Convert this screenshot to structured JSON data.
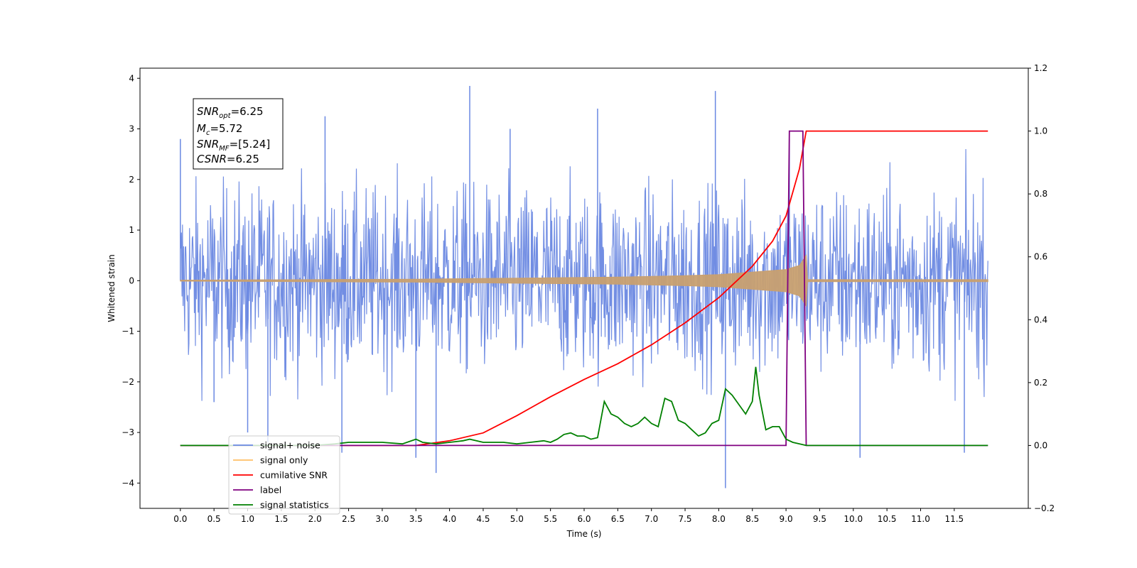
{
  "chart_data": {
    "type": "line",
    "title": "",
    "xlabel": "Time (s)",
    "ylabel_left": "Whitened strain",
    "ylabel_right": "",
    "xlim": [
      -0.6,
      12.6
    ],
    "ylim_left": [
      -4.5,
      4.2
    ],
    "ylim_right": [
      -0.2,
      1.2
    ],
    "x_ticks": [
      "0.0",
      "0.5",
      "1.0",
      "1.5",
      "2.0",
      "2.5",
      "3.0",
      "3.5",
      "4.0",
      "4.5",
      "5.0",
      "5.5",
      "6.0",
      "6.5",
      "7.0",
      "7.5",
      "8.0",
      "8.5",
      "9.0",
      "9.5",
      "10.0",
      "10.5",
      "11.0",
      "11.5"
    ],
    "y_ticks_left": [
      "4",
      "3",
      "2",
      "1",
      "0",
      "−1",
      "−2",
      "−3",
      "−4"
    ],
    "y_ticks_right": [
      "1.2",
      "1.0",
      "0.8",
      "0.6",
      "0.4",
      "0.2",
      "0.0",
      "−0.2"
    ],
    "grid": false,
    "legend_position": "bottom-left",
    "annotation": {
      "lines": [
        {
          "main": "SNR",
          "sub": "opt",
          "rest": "=6.25"
        },
        {
          "main": "M",
          "sub": "c",
          "rest": "=5.72"
        },
        {
          "main": "SNR",
          "sub": "MF",
          "rest": "=[5.24]"
        },
        {
          "main": "CSNR",
          "sub": "",
          "rest": "=6.25"
        }
      ]
    },
    "legend": [
      {
        "label": "signal+ noise",
        "color": "#6a88e2"
      },
      {
        "label": "signal only",
        "color": "#ffbf66"
      },
      {
        "label": "cumilative SNR",
        "color": "#ff0000"
      },
      {
        "label": "label",
        "color": "#800080"
      },
      {
        "label": "signal statistics",
        "color": "#008000"
      }
    ],
    "series": [
      {
        "name": "signal+ noise",
        "axis": "left",
        "color": "#6a88e2",
        "description_range": [
          0.0,
          12.0
        ],
        "typical_amplitude": 1.8,
        "peaks": [
          [
            0.0,
            2.8
          ],
          [
            0.5,
            -2.4
          ],
          [
            1.0,
            -3.0
          ],
          [
            1.3,
            -3.2
          ],
          [
            2.15,
            3.25
          ],
          [
            2.4,
            -3.4
          ],
          [
            3.5,
            -3.5
          ],
          [
            3.8,
            -3.8
          ],
          [
            4.3,
            3.85
          ],
          [
            4.9,
            3.0
          ],
          [
            6.2,
            3.4
          ],
          [
            7.95,
            3.75
          ],
          [
            8.1,
            -4.1
          ],
          [
            9.05,
            2.8
          ],
          [
            10.1,
            -3.5
          ],
          [
            11.65,
            -3.4
          ]
        ]
      },
      {
        "name": "signal only",
        "axis": "left",
        "color": "#c8a070",
        "envelope": [
          [
            0.0,
            0.01
          ],
          [
            3.5,
            0.03
          ],
          [
            5.0,
            0.05
          ],
          [
            6.5,
            0.07
          ],
          [
            7.5,
            0.1
          ],
          [
            8.0,
            0.12
          ],
          [
            8.5,
            0.17
          ],
          [
            9.0,
            0.22
          ],
          [
            9.2,
            0.3
          ],
          [
            9.3,
            0.5
          ],
          [
            9.32,
            0.02
          ],
          [
            12.0,
            0.02
          ]
        ]
      },
      {
        "name": "cumilative SNR",
        "axis": "right",
        "color": "#ff0000",
        "x": [
          0.0,
          3.5,
          4.0,
          4.5,
          5.0,
          5.5,
          6.0,
          6.5,
          7.0,
          7.5,
          8.0,
          8.5,
          8.8,
          9.0,
          9.2,
          9.3,
          12.0
        ],
        "values": [
          0.0,
          0.0,
          0.015,
          0.04,
          0.095,
          0.155,
          0.21,
          0.26,
          0.32,
          0.39,
          0.47,
          0.57,
          0.65,
          0.73,
          0.88,
          1.0,
          1.0
        ]
      },
      {
        "name": "label",
        "axis": "right",
        "color": "#800080",
        "x": [
          0.0,
          9.0,
          9.05,
          9.25,
          9.3,
          12.0
        ],
        "values": [
          0.0,
          0.0,
          1.0,
          1.0,
          0.0,
          0.0
        ]
      },
      {
        "name": "signal statistics",
        "axis": "right",
        "color": "#008000",
        "x": [
          0.0,
          1.0,
          2.0,
          2.3,
          2.5,
          2.8,
          3.0,
          3.3,
          3.5,
          3.6,
          3.8,
          4.0,
          4.2,
          4.3,
          4.5,
          4.8,
          5.0,
          5.2,
          5.4,
          5.5,
          5.6,
          5.7,
          5.8,
          5.9,
          6.0,
          6.1,
          6.2,
          6.3,
          6.4,
          6.5,
          6.6,
          6.7,
          6.8,
          6.9,
          7.0,
          7.1,
          7.2,
          7.3,
          7.4,
          7.5,
          7.6,
          7.7,
          7.8,
          7.9,
          8.0,
          8.1,
          8.2,
          8.3,
          8.4,
          8.5,
          8.55,
          8.6,
          8.7,
          8.8,
          8.9,
          9.0,
          9.1,
          9.3,
          12.0
        ],
        "values": [
          0.0,
          0.0,
          0.0,
          0.005,
          0.01,
          0.01,
          0.01,
          0.005,
          0.02,
          0.01,
          0.005,
          0.01,
          0.015,
          0.02,
          0.01,
          0.01,
          0.005,
          0.01,
          0.015,
          0.01,
          0.02,
          0.035,
          0.04,
          0.03,
          0.03,
          0.02,
          0.025,
          0.14,
          0.1,
          0.09,
          0.07,
          0.06,
          0.07,
          0.09,
          0.07,
          0.06,
          0.15,
          0.14,
          0.08,
          0.07,
          0.05,
          0.03,
          0.04,
          0.07,
          0.08,
          0.18,
          0.16,
          0.13,
          0.1,
          0.14,
          0.25,
          0.16,
          0.05,
          0.06,
          0.06,
          0.02,
          0.01,
          0.0,
          0.0
        ]
      }
    ]
  }
}
